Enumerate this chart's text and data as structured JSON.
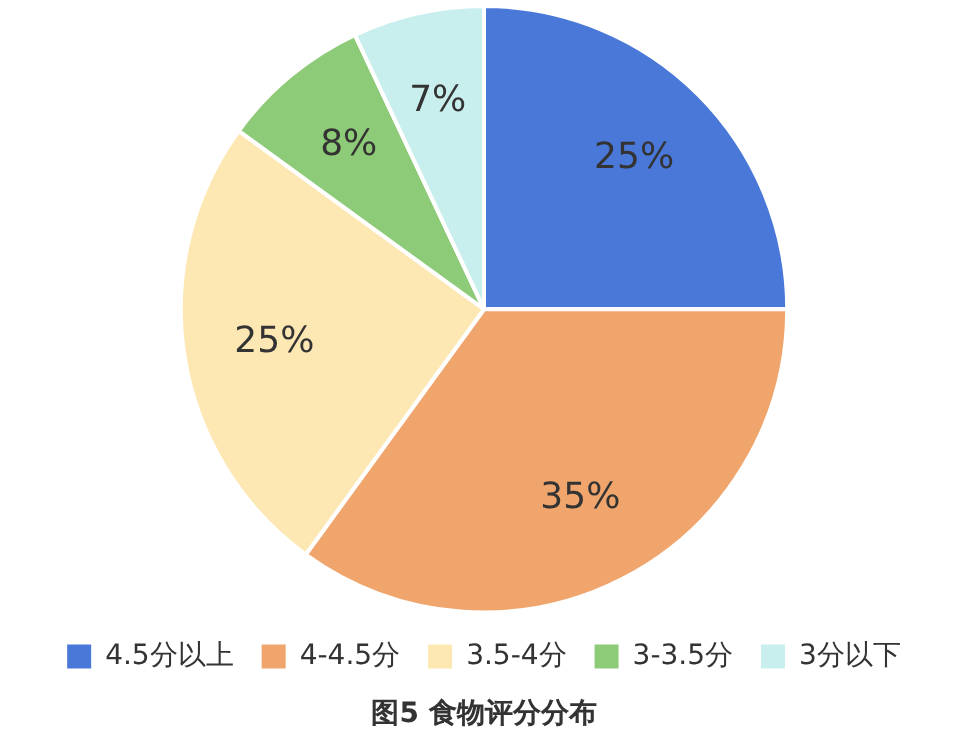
{
  "chart_data": {
    "type": "pie",
    "title": "图5 食物评分分布",
    "categories": [
      "4.5分以上",
      "4-4.5分",
      "3.5-4分",
      "3-3.5分",
      "3分以下"
    ],
    "values": [
      25,
      35,
      25,
      8,
      7
    ],
    "value_labels": [
      "25%",
      "35%",
      "25%",
      "8%",
      "7%"
    ],
    "colors": [
      "#4a78d8",
      "#f0a56c",
      "#fde8b4",
      "#8ecb78",
      "#c9eeee"
    ],
    "legend": "bottom"
  }
}
